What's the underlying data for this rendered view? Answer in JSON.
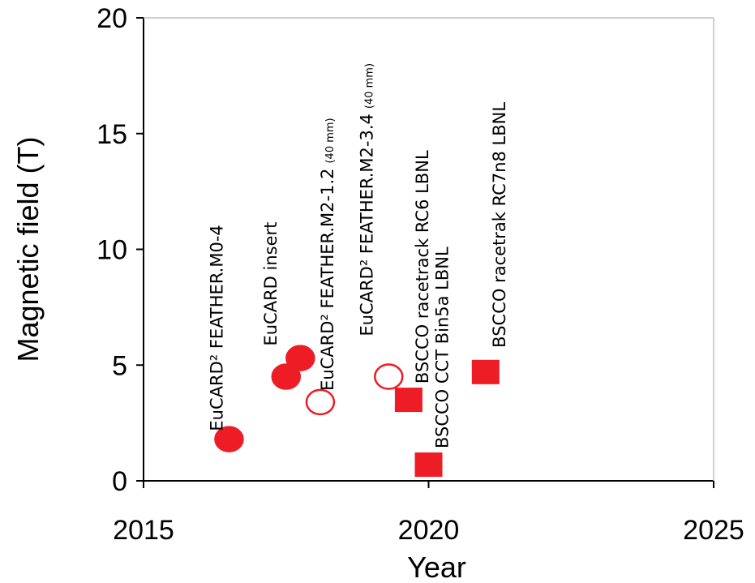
{
  "chart_data": {
    "type": "scatter",
    "xlabel": "Year",
    "ylabel": "Magnetic field (T)",
    "xlim": [
      2015,
      2025
    ],
    "ylim": [
      0,
      20
    ],
    "xticks": [
      "2015",
      "2020",
      "2025"
    ],
    "yticks": [
      "0",
      "5",
      "10",
      "15",
      "20"
    ],
    "grid": false,
    "marker_color": "#ee1c25",
    "points": [
      {
        "x": 2016.5,
        "y": 1.8,
        "marker": "circle",
        "filled": true,
        "label": "EuCARD² FEATHER.M0-4",
        "note": ""
      },
      {
        "x": 2017.5,
        "y": 4.5,
        "marker": "circle",
        "filled": true,
        "label": "EuCARD insert",
        "note": ""
      },
      {
        "x": 2017.75,
        "y": 5.3,
        "marker": "circle",
        "filled": true,
        "label": "",
        "note": ""
      },
      {
        "x": 2018.1,
        "y": 3.4,
        "marker": "circle",
        "filled": false,
        "label": "EuCARD² FEATHER.M2-1.2",
        "note": "(40 mm)"
      },
      {
        "x": 2019.3,
        "y": 4.5,
        "marker": "circle",
        "filled": false,
        "label": "EuCARD² FEATHER.M2-3.4",
        "note": "(40 mm)"
      },
      {
        "x": 2019.65,
        "y": 3.5,
        "marker": "square",
        "filled": true,
        "label": "BSCCO racetrack RC6 LBNL",
        "note": ""
      },
      {
        "x": 2020.0,
        "y": 0.7,
        "marker": "square",
        "filled": true,
        "label": "BSCCO CCT Bin5a LBNL",
        "note": ""
      },
      {
        "x": 2021.0,
        "y": 4.7,
        "marker": "square",
        "filled": true,
        "label": "BSCCO racetrak RC7n8 LBNL",
        "note": ""
      }
    ]
  }
}
